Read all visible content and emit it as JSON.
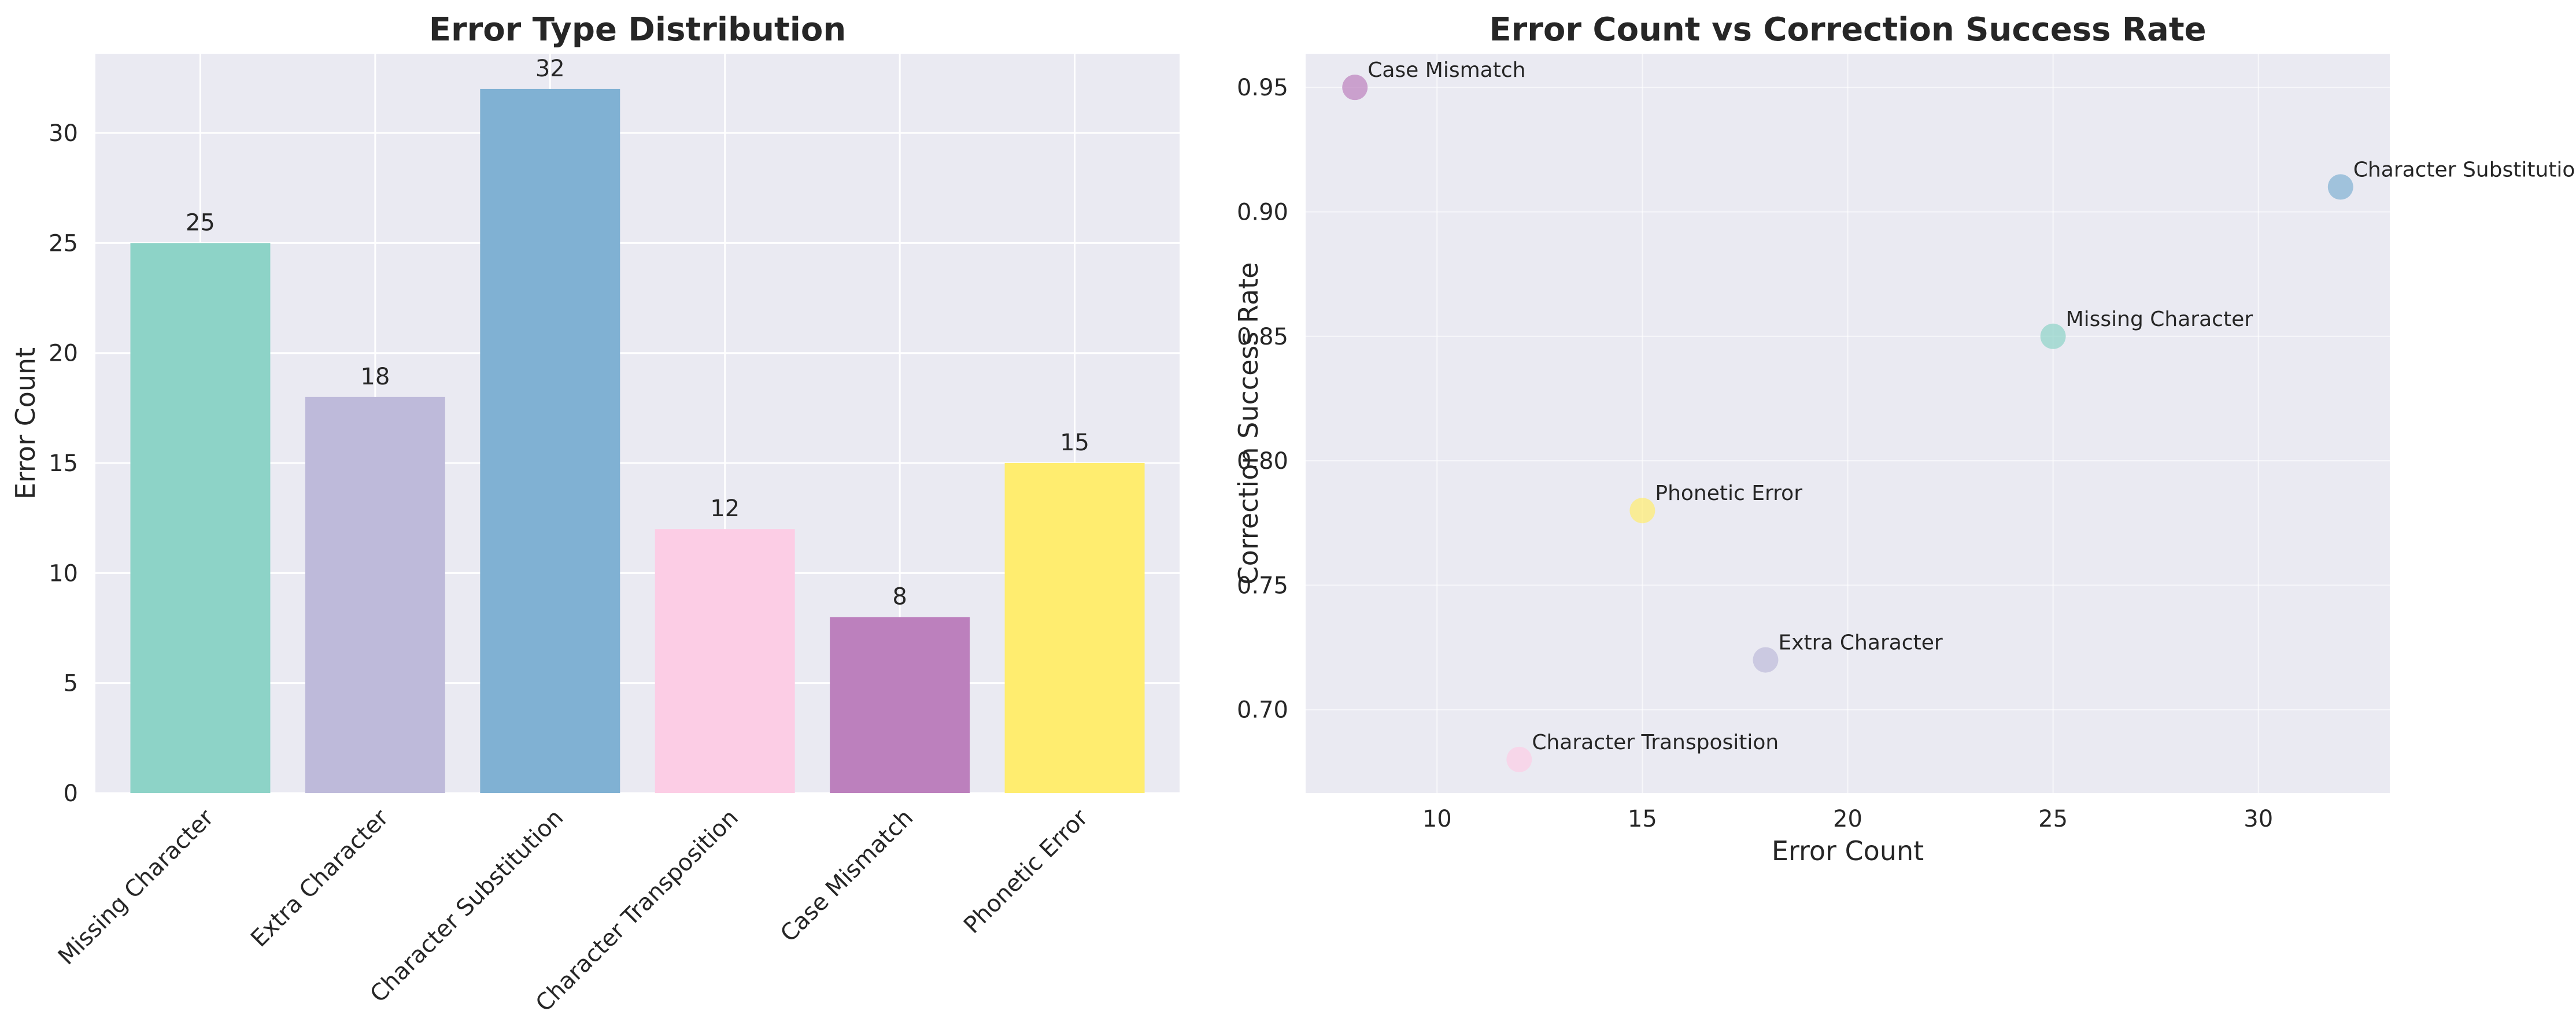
{
  "chart_data": [
    {
      "type": "bar",
      "title": "Error Type Distribution",
      "xlabel": "",
      "ylabel": "Error Count",
      "categories": [
        "Missing Character",
        "Extra Character",
        "Character Substitution",
        "Character Transposition",
        "Case Mismatch",
        "Phonetic Error"
      ],
      "values": [
        25,
        18,
        32,
        12,
        8,
        15
      ],
      "colors": [
        "#8dd3c7",
        "#bebada",
        "#80b1d3",
        "#fccde5",
        "#bc80bd",
        "#ffed6f"
      ],
      "ylim": [
        0,
        33.6
      ],
      "yticks": [
        0,
        5,
        10,
        15,
        20,
        25,
        30
      ],
      "tick_rotation": 45,
      "grid": true,
      "background": "#eaeaf2"
    },
    {
      "type": "scatter",
      "title": "Error Count vs Correction Success Rate",
      "xlabel": "Error Count",
      "ylabel": "Correction Success Rate",
      "points": [
        {
          "label": "Missing Character",
          "x": 25,
          "y": 0.85,
          "color": "#8dd3c7"
        },
        {
          "label": "Extra Character",
          "x": 18,
          "y": 0.72,
          "color": "#bebada"
        },
        {
          "label": "Character Substitution",
          "x": 32,
          "y": 0.91,
          "color": "#80b1d3"
        },
        {
          "label": "Character Transposition",
          "x": 12,
          "y": 0.68,
          "color": "#fccde5"
        },
        {
          "label": "Case Mismatch",
          "x": 8,
          "y": 0.95,
          "color": "#bc80bd"
        },
        {
          "label": "Phonetic Error",
          "x": 15,
          "y": 0.78,
          "color": "#ffed6f"
        }
      ],
      "xlim": [
        6.8,
        33.2
      ],
      "ylim": [
        0.6665,
        0.9635
      ],
      "xticks": [
        10,
        15,
        20,
        25,
        30
      ],
      "yticks": [
        0.7,
        0.75,
        0.8,
        0.85,
        0.9,
        0.95
      ],
      "ytick_labels": [
        "0.70",
        "0.75",
        "0.80",
        "0.85",
        "0.90",
        "0.95"
      ],
      "grid": true,
      "background": "#eaeaf2"
    }
  ]
}
